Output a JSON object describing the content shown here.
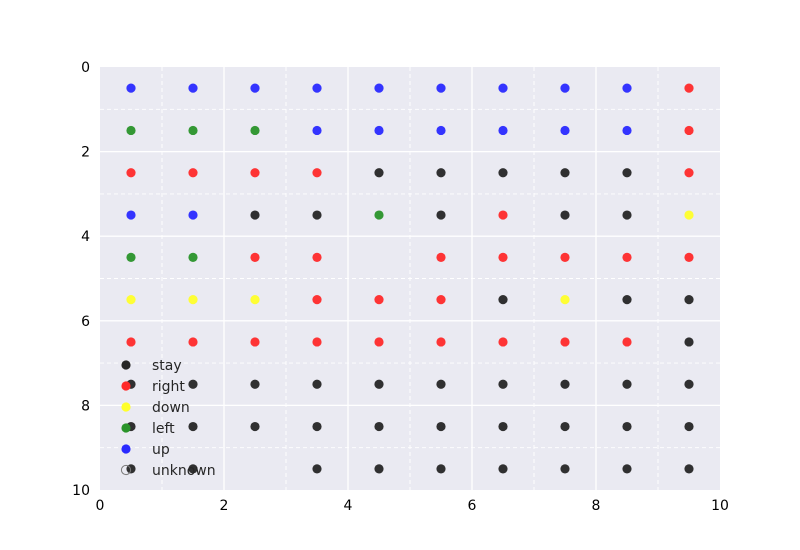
{
  "chart_data": {
    "type": "scatter",
    "title": "",
    "xlabel": "",
    "ylabel": "",
    "xlim": [
      0,
      10
    ],
    "ylim": [
      0,
      10
    ],
    "y_inverted": true,
    "grid": true,
    "legend_placement": "lower-left",
    "x_ticks": [
      0,
      2,
      4,
      6,
      8,
      10
    ],
    "y_ticks": [
      0,
      2,
      4,
      6,
      8,
      10
    ],
    "x_tick_labels": [
      "0",
      "2",
      "4",
      "6",
      "8",
      "10"
    ],
    "y_tick_labels": [
      "0",
      "2",
      "4",
      "6",
      "8",
      "10"
    ],
    "categories": [
      {
        "name": "stay",
        "color": "#262626"
      },
      {
        "name": "right",
        "color": "#ff2a2a"
      },
      {
        "name": "down",
        "color": "#ffff2a"
      },
      {
        "name": "left",
        "color": "#2a942a"
      },
      {
        "name": "up",
        "color": "#2a2aff"
      },
      {
        "name": "unknown",
        "color": "none"
      }
    ],
    "grid_rows": [
      [
        "up",
        "up",
        "up",
        "up",
        "up",
        "up",
        "up",
        "up",
        "up",
        "right"
      ],
      [
        "left",
        "left",
        "left",
        "up",
        "up",
        "up",
        "up",
        "up",
        "up",
        "right"
      ],
      [
        "right",
        "right",
        "right",
        "right",
        "stay",
        "stay",
        "stay",
        "stay",
        "stay",
        "right"
      ],
      [
        "up",
        "up",
        "stay",
        "stay",
        "left",
        "stay",
        "right",
        "stay",
        "stay",
        "down"
      ],
      [
        "left",
        "left",
        "right",
        "right",
        "unknown",
        "right",
        "right",
        "right",
        "right",
        "right"
      ],
      [
        "down",
        "down",
        "down",
        "right",
        "right",
        "right",
        "stay",
        "down",
        "stay",
        "stay"
      ],
      [
        "right",
        "right",
        "right",
        "right",
        "right",
        "right",
        "right",
        "right",
        "right",
        "stay"
      ],
      [
        "stay",
        "stay",
        "stay",
        "stay",
        "stay",
        "stay",
        "stay",
        "stay",
        "stay",
        "stay"
      ],
      [
        "stay",
        "stay",
        "stay",
        "stay",
        "stay",
        "stay",
        "stay",
        "stay",
        "stay",
        "stay"
      ],
      [
        "stay",
        "stay",
        "unknown",
        "stay",
        "stay",
        "stay",
        "stay",
        "stay",
        "stay",
        "stay"
      ]
    ]
  }
}
